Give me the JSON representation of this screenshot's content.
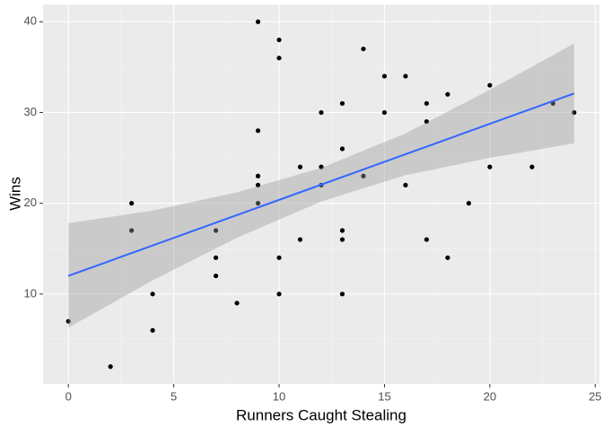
{
  "chart_data": {
    "type": "scatter",
    "x_label": "Runners Caught Stealing",
    "y_label": "Wins",
    "x": [
      0,
      2,
      3,
      3,
      4,
      4,
      7,
      7,
      7,
      8,
      9,
      9,
      9,
      9,
      9,
      10,
      10,
      10,
      10,
      11,
      11,
      12,
      12,
      12,
      13,
      13,
      13,
      13,
      13,
      14,
      14,
      15,
      15,
      16,
      16,
      17,
      17,
      17,
      18,
      18,
      19,
      20,
      20,
      22,
      23,
      24
    ],
    "values": [
      7,
      2,
      20,
      17,
      10,
      6,
      17,
      14,
      12,
      9,
      40,
      28,
      23,
      22,
      20,
      38,
      36,
      14,
      10,
      24,
      16,
      30,
      24,
      22,
      31,
      26,
      17,
      16,
      10,
      37,
      23,
      34,
      30,
      34,
      22,
      31,
      29,
      16,
      32,
      14,
      20,
      33,
      24,
      24,
      31,
      30
    ],
    "color": "#000000",
    "fit": {
      "x": [
        0,
        4,
        8,
        12,
        16,
        20,
        24
      ],
      "values": [
        12,
        15.35,
        18.7,
        22.05,
        25.4,
        28.75,
        32.1
      ],
      "lower": [
        6.3,
        11.5,
        16.2,
        20.2,
        23.1,
        25.0,
        26.6
      ],
      "upper": [
        17.8,
        19.2,
        21.2,
        23.9,
        27.7,
        32.5,
        37.6
      ],
      "color": "#3366FF",
      "band_color": "#999999"
    },
    "xlim": [
      -1.2,
      25.2
    ],
    "ylim": [
      0.1,
      41.9
    ],
    "xticks": [
      0,
      5,
      10,
      15,
      20,
      25
    ],
    "yticks": [
      10,
      20,
      30,
      40
    ],
    "grid": true
  }
}
